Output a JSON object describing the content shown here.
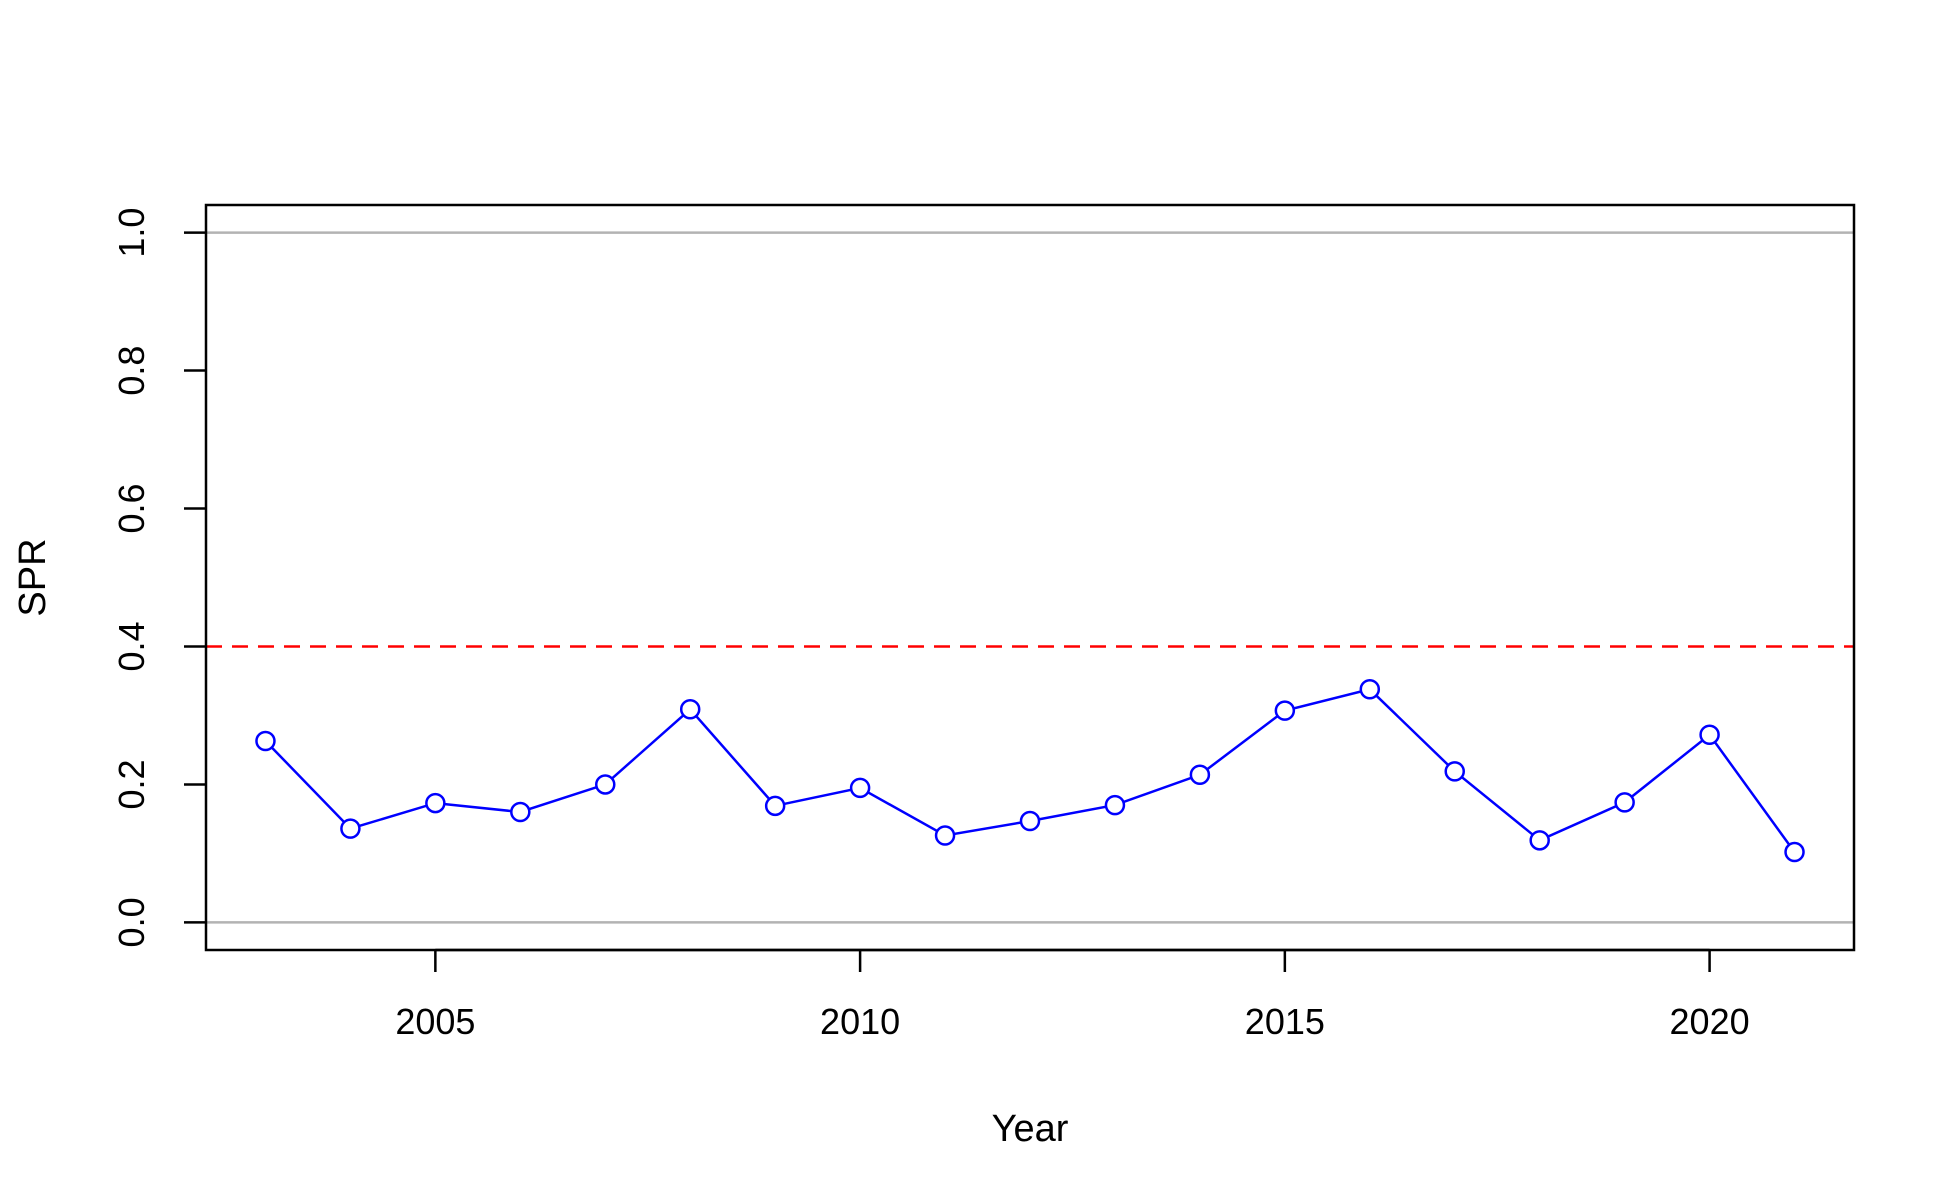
{
  "chart_data": {
    "type": "line",
    "title": "",
    "xlabel": "Year",
    "ylabel": "SPR",
    "xlim": [
      2002.3,
      2021.7
    ],
    "ylim": [
      -0.04,
      1.04
    ],
    "x_ticks": [
      2005,
      2010,
      2015,
      2020
    ],
    "x_tick_labels": [
      "2005",
      "2010",
      "2015",
      "2020"
    ],
    "y_ticks": [
      0.0,
      0.2,
      0.4,
      0.6,
      0.8,
      1.0
    ],
    "y_tick_labels": [
      "0.0",
      "0.2",
      "0.4",
      "0.6",
      "0.8",
      "1.0"
    ],
    "grid": false,
    "series": [
      {
        "color": "#0000ff",
        "marker": "open-circle",
        "x": [
          2003,
          2004,
          2005,
          2006,
          2007,
          2008,
          2009,
          2010,
          2011,
          2012,
          2013,
          2014,
          2015,
          2016,
          2017,
          2018,
          2019,
          2020,
          2021
        ],
        "y": [
          0.263,
          0.136,
          0.173,
          0.16,
          0.2,
          0.309,
          0.169,
          0.195,
          0.126,
          0.147,
          0.17,
          0.214,
          0.307,
          0.338,
          0.219,
          0.119,
          0.174,
          0.272,
          0.102
        ]
      }
    ],
    "reference_lines": [
      {
        "y": 1.0,
        "color": "#b3b3b3",
        "style": "solid"
      },
      {
        "y": 0.0,
        "color": "#b3b3b3",
        "style": "solid"
      },
      {
        "y": 0.4,
        "color": "#ff0000",
        "style": "dashed"
      }
    ]
  }
}
